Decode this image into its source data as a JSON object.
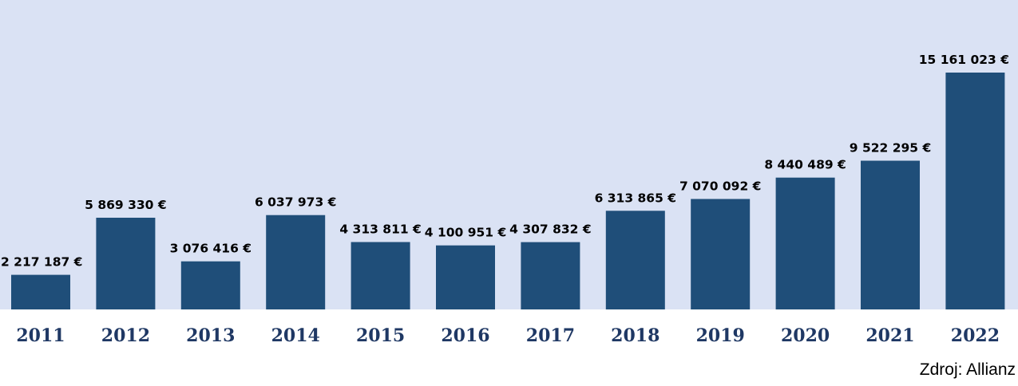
{
  "chart_data": {
    "type": "bar",
    "categories": [
      "2011",
      "2012",
      "2013",
      "2014",
      "2015",
      "2016",
      "2017",
      "2018",
      "2019",
      "2020",
      "2021",
      "2022"
    ],
    "values": [
      2217187,
      5869330,
      3076416,
      6037973,
      4313811,
      4100951,
      4307832,
      6313865,
      7070092,
      8440489,
      9522295,
      15161023
    ],
    "data_labels": [
      "2 217 187 €",
      "5 869 330 €",
      "3 076 416 €",
      "6 037 973 €",
      "4 313 811 €",
      "4 100 951 €",
      "4 307 832 €",
      "6 313 865 €",
      "7 070 092 €",
      "8 440 489 €",
      "9 522 295 €",
      "15 161 023 €"
    ],
    "ylim": [
      0,
      17500000
    ],
    "grid": false,
    "legend": false
  },
  "colors": {
    "plot_background": "#dae2f4",
    "bar": "#1f4e79",
    "category_label": "#1f3864",
    "data_label": "#000000"
  },
  "source": "Zdroj: Allianz"
}
